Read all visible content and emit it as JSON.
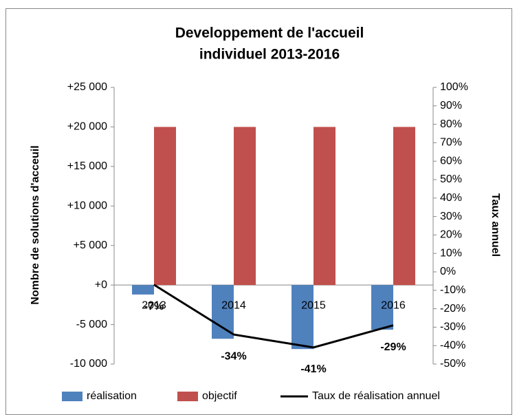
{
  "chart_data": {
    "type": "bar",
    "title": [
      "Developpement de l'accueil",
      "individuel 2013-2016"
    ],
    "y_label": "Nombre de solutions d'acceuil",
    "y2_label": "Taux annuel",
    "categories": [
      "2013",
      "2014",
      "2015",
      "2016"
    ],
    "series": [
      {
        "name": "réalisation",
        "type": "bar",
        "color": "#4f81bd",
        "values": [
          -1200,
          -6800,
          -8100,
          -5650
        ]
      },
      {
        "name": "objectif",
        "type": "bar",
        "color": "#c0504d",
        "values": [
          20000,
          20000,
          20000,
          20000
        ]
      },
      {
        "name": "Taux de réalisation annuel",
        "type": "line",
        "axis": "y2",
        "color": "#000000",
        "values": [
          -7,
          -34,
          -41,
          -29
        ],
        "value_labels": [
          "-7%",
          "-34%",
          "-41%",
          "-29%"
        ]
      }
    ],
    "ylim": [
      -10000,
      25000
    ],
    "yticks": [
      {
        "value": -10000,
        "label": "-10 000"
      },
      {
        "value": -5000,
        "label": "-5 000"
      },
      {
        "value": 0,
        "label": "+0"
      },
      {
        "value": 5000,
        "label": "+5 000"
      },
      {
        "value": 10000,
        "label": "+10 000"
      },
      {
        "value": 15000,
        "label": "+15 000"
      },
      {
        "value": 20000,
        "label": "+20 000"
      },
      {
        "value": 25000,
        "label": "+25 000"
      }
    ],
    "y2lim": [
      -50,
      100
    ],
    "y2ticks": [
      {
        "value": -50,
        "label": "-50%"
      },
      {
        "value": -40,
        "label": "-40%"
      },
      {
        "value": -30,
        "label": "-30%"
      },
      {
        "value": -20,
        "label": "-20%"
      },
      {
        "value": -10,
        "label": "-10%"
      },
      {
        "value": 0,
        "label": "0%"
      },
      {
        "value": 10,
        "label": "10%"
      },
      {
        "value": 20,
        "label": "20%"
      },
      {
        "value": 30,
        "label": "30%"
      },
      {
        "value": 40,
        "label": "40%"
      },
      {
        "value": 50,
        "label": "50%"
      },
      {
        "value": 60,
        "label": "60%"
      },
      {
        "value": 70,
        "label": "70%"
      },
      {
        "value": 80,
        "label": "80%"
      },
      {
        "value": 90,
        "label": "90%"
      },
      {
        "value": 100,
        "label": "100%"
      }
    ],
    "legend": "bottom"
  }
}
